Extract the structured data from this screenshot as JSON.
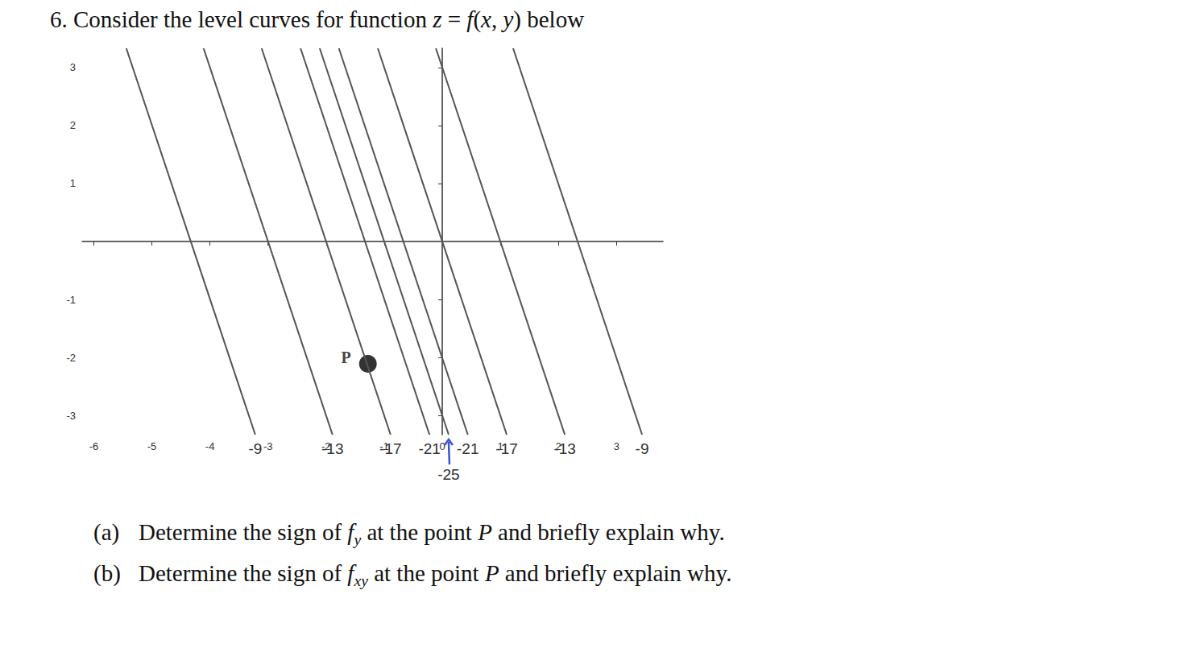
{
  "question": {
    "segments": [
      {
        "text": "6. Consider the level curves for function "
      },
      {
        "text": "z",
        "style": "italic"
      },
      {
        "text": " = "
      },
      {
        "text": "f",
        "style": "italic"
      },
      {
        "text": "("
      },
      {
        "text": "x",
        "style": "italic"
      },
      {
        "text": ", "
      },
      {
        "text": "y",
        "style": "italic"
      },
      {
        "text": ") below"
      }
    ]
  },
  "chart_data": {
    "type": "line",
    "xlim": [
      -6.2,
      3.8
    ],
    "ylim": [
      -3.33,
      3.33
    ],
    "xticks": [
      -6,
      -5,
      -4,
      -3,
      -2,
      -1,
      0,
      1,
      2,
      3
    ],
    "yticks": [
      -3,
      -2,
      -1,
      1,
      2,
      3
    ],
    "grid": false,
    "color": "#555555",
    "series": [
      {
        "level": -9,
        "x": [
          -5.44,
          -3.22
        ],
        "y": [
          3.33,
          -3.33
        ]
      },
      {
        "level": -13,
        "x": [
          -4.11,
          -1.89
        ],
        "y": [
          3.33,
          -3.33
        ]
      },
      {
        "level": -17,
        "x": [
          -3.11,
          -0.89
        ],
        "y": [
          3.33,
          -3.33
        ]
      },
      {
        "level": -21,
        "x": [
          -2.44,
          -0.22
        ],
        "y": [
          3.33,
          -3.33
        ]
      },
      {
        "level": -25,
        "x": [
          -2.11,
          0.11
        ],
        "y": [
          3.33,
          -3.33
        ],
        "label_marker": "arrow",
        "marker_color": "#3b55d0"
      },
      {
        "level": -21,
        "x": [
          -1.78,
          0.44
        ],
        "y": [
          3.33,
          -3.33
        ]
      },
      {
        "level": -17,
        "x": [
          -1.11,
          1.11
        ],
        "y": [
          3.33,
          -3.33
        ]
      },
      {
        "level": -13,
        "x": [
          -0.11,
          2.11
        ],
        "y": [
          3.33,
          -3.33
        ]
      },
      {
        "level": -9,
        "x": [
          1.22,
          3.44
        ],
        "y": [
          3.33,
          -3.33
        ]
      }
    ],
    "points": [
      {
        "label": "P",
        "x": -1.28,
        "y": -2.11,
        "color": "#000000"
      }
    ]
  },
  "parts": [
    {
      "label": "(a)",
      "segments": [
        {
          "text": "Determine the sign of "
        },
        {
          "text": "f",
          "style": "italic"
        },
        {
          "text": "y",
          "style": "sub"
        },
        {
          "text": " at the point "
        },
        {
          "text": "P",
          "style": "italic"
        },
        {
          "text": " and briefly explain why."
        }
      ]
    },
    {
      "label": "(b)",
      "segments": [
        {
          "text": "Determine the sign of "
        },
        {
          "text": "f",
          "style": "italic"
        },
        {
          "text": "xy",
          "style": "sub"
        },
        {
          "text": " at the point "
        },
        {
          "text": "P",
          "style": "italic"
        },
        {
          "text": " and briefly explain why."
        }
      ]
    }
  ]
}
